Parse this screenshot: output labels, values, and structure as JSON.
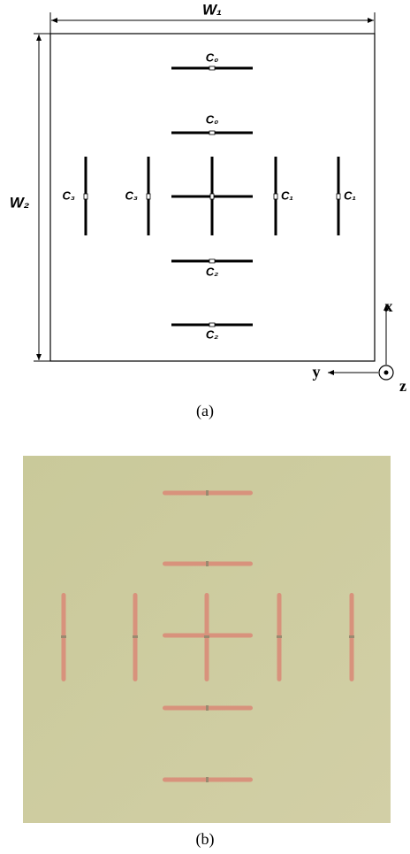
{
  "panel_a": {
    "dimensions": {
      "width": "W₁",
      "height": "W₂"
    },
    "ports": [
      "C₀",
      "C₀",
      "C₃",
      "C₃",
      "C₁",
      "C₁",
      "C₂",
      "C₂"
    ],
    "axes": {
      "x": "x",
      "y": "y",
      "z": "z"
    },
    "caption": "(a)"
  },
  "panel_b": {
    "caption": "(b)"
  }
}
